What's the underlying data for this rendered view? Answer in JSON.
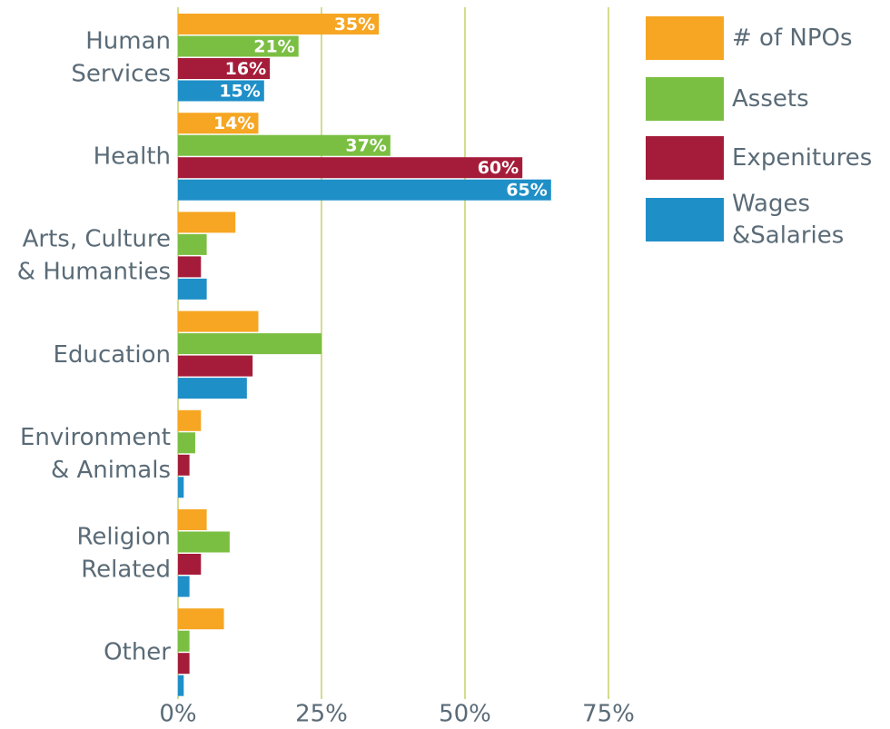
{
  "chart_data": {
    "type": "bar",
    "orientation": "horizontal",
    "categories": [
      "Human\nServices",
      "Health",
      "Arts, Culture\n& Humanties",
      "Education",
      "Environment\n& Animals",
      "Religion\nRelated",
      "Other"
    ],
    "series": [
      {
        "name": "# of NPOs",
        "color": "#f6a623",
        "values": [
          35,
          14,
          10,
          14,
          4,
          5,
          8
        ],
        "value_labels": [
          "35%",
          "14%",
          null,
          null,
          null,
          null,
          null
        ]
      },
      {
        "name": "Assets",
        "color": "#7bbf42",
        "values": [
          21,
          37,
          5,
          25,
          3,
          9,
          2
        ],
        "value_labels": [
          "21%",
          "37%",
          null,
          null,
          null,
          null,
          null
        ]
      },
      {
        "name": "Expenitures",
        "color": "#a51c3a",
        "values": [
          16,
          60,
          4,
          13,
          2,
          4,
          2
        ],
        "value_labels": [
          "16%",
          "60%",
          null,
          null,
          null,
          null,
          null
        ]
      },
      {
        "name": "Wages\n&Salaries",
        "color": "#1f8fc8",
        "values": [
          15,
          65,
          5,
          12,
          1,
          2,
          1
        ],
        "value_labels": [
          "15%",
          "65%",
          null,
          null,
          null,
          null,
          null
        ]
      }
    ],
    "xlim": [
      0,
      75
    ],
    "xticks": [
      {
        "value": 0,
        "label": "0%"
      },
      {
        "value": 25,
        "label": "25%"
      },
      {
        "value": 50,
        "label": "50%"
      },
      {
        "value": 75,
        "label": "75%"
      }
    ],
    "grid": true,
    "legend": "right"
  }
}
